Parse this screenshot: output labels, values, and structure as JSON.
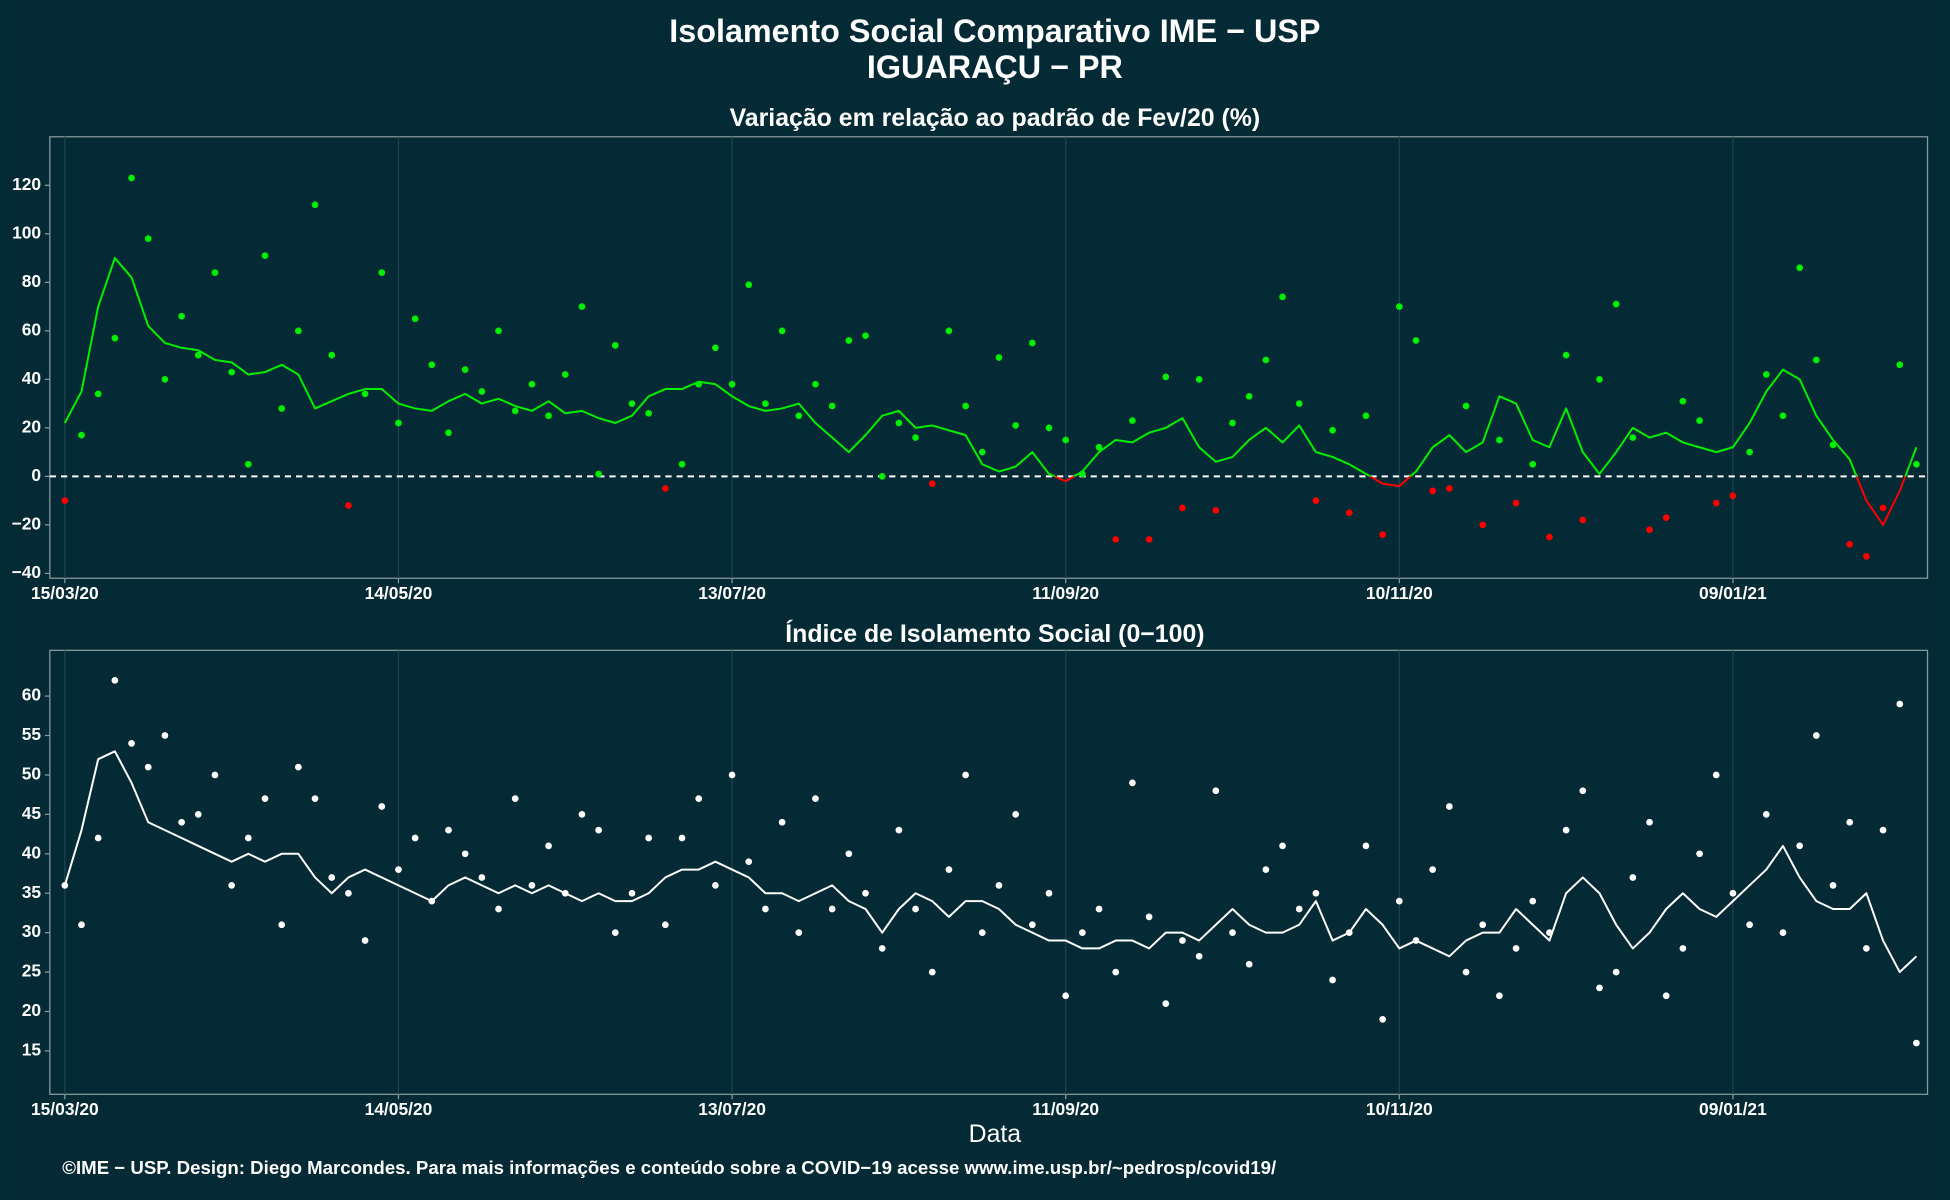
{
  "header": {
    "title": "Isolamento Social Comparativo IME − USP",
    "subtitle": "IGUARAÇU − PR"
  },
  "footer": "©IME − USP. Design: Diego Marcondes. Para mais informações e conteúdo sobre a COVID−19 acesse www.ime.usp.br/~pedrosp/covid19/",
  "chart_data": [
    {
      "type": "scatter",
      "title": "Variação em relação ao padrão de Fev/20 (%)",
      "x": [
        0,
        3,
        6,
        9,
        12,
        15,
        18,
        21,
        24,
        27,
        30,
        33,
        36,
        39,
        42,
        45,
        48,
        51,
        54,
        57,
        60,
        63,
        66,
        69,
        72,
        75,
        78,
        81,
        84,
        87,
        90,
        93,
        96,
        99,
        102,
        105,
        108,
        111,
        114,
        117,
        120,
        123,
        126,
        129,
        132,
        135,
        138,
        141,
        144,
        147,
        150,
        153,
        156,
        159,
        162,
        165,
        168,
        171,
        174,
        177,
        180,
        183,
        186,
        189,
        192,
        195,
        198,
        201,
        204,
        207,
        210,
        213,
        216,
        219,
        222,
        225,
        228,
        231,
        234,
        237,
        240,
        243,
        246,
        249,
        252,
        255,
        258,
        261,
        264,
        267,
        270,
        273,
        276,
        279,
        282,
        285,
        288,
        291,
        294,
        297,
        300,
        303,
        306,
        309,
        312,
        315,
        318,
        321,
        324,
        327,
        330,
        333
      ],
      "values": [
        -10,
        17,
        34,
        57,
        123,
        98,
        40,
        66,
        50,
        84,
        43,
        5,
        91,
        28,
        60,
        112,
        50,
        -12,
        34,
        84,
        22,
        65,
        46,
        18,
        44,
        35,
        60,
        27,
        38,
        25,
        42,
        70,
        1,
        54,
        30,
        26,
        -5,
        5,
        38,
        53,
        38,
        79,
        30,
        60,
        25,
        38,
        29,
        56,
        58,
        0,
        22,
        16,
        -3,
        60,
        29,
        10,
        49,
        21,
        55,
        20,
        15,
        1,
        12,
        -26,
        23,
        -26,
        41,
        -13,
        40,
        -14,
        22,
        33,
        48,
        74,
        30,
        -10,
        19,
        -15,
        25,
        -24,
        70,
        56,
        -6,
        -5,
        29,
        -20,
        15,
        -11,
        5,
        -25,
        50,
        -18,
        40,
        71,
        16,
        -22,
        -17,
        31,
        23,
        -11,
        -8,
        10,
        42,
        25,
        86,
        48,
        13,
        -28,
        -33,
        -13,
        46,
        5
      ],
      "moving_average": [
        22,
        35,
        70,
        90,
        82,
        62,
        55,
        53,
        52,
        48,
        47,
        42,
        43,
        46,
        42,
        28,
        31,
        34,
        36,
        36,
        30,
        28,
        27,
        31,
        34,
        30,
        32,
        29,
        27,
        31,
        26,
        27,
        24,
        22,
        25,
        33,
        36,
        36,
        39,
        38,
        33,
        29,
        27,
        28,
        30,
        22,
        16,
        10,
        17,
        25,
        27,
        20,
        21,
        19,
        17,
        5,
        2,
        4,
        10,
        1,
        -2,
        2,
        10,
        15,
        14,
        18,
        20,
        24,
        12,
        6,
        8,
        15,
        20,
        14,
        21,
        10,
        8,
        5,
        1,
        -3,
        -4,
        2,
        12,
        17,
        10,
        14,
        33,
        30,
        15,
        12,
        28,
        10,
        1,
        10,
        20,
        16,
        18,
        14,
        12,
        10,
        12,
        22,
        35,
        44,
        40,
        25,
        15,
        7,
        -10,
        -20,
        -6,
        12
      ],
      "positive_color": "#00ee00",
      "negative_color": "#ff0000",
      "xlim": [
        -2.7,
        335
      ],
      "ylim": [
        -42,
        140
      ],
      "xticks": [
        {
          "value": 0,
          "label": "15/03/20"
        },
        {
          "value": 60,
          "label": "14/05/20"
        },
        {
          "value": 120,
          "label": "13/07/20"
        },
        {
          "value": 180,
          "label": "11/09/20"
        },
        {
          "value": 240,
          "label": "10/11/20"
        },
        {
          "value": 300,
          "label": "09/01/21"
        }
      ],
      "yticks": [
        {
          "value": -40,
          "label": "−40"
        },
        {
          "value": -20,
          "label": "−20"
        },
        0,
        20,
        40,
        60,
        80,
        100,
        120
      ],
      "hline": 0,
      "grid": true
    },
    {
      "type": "scatter",
      "title": "Índice de Isolamento Social (0−100)",
      "xlabel": "Data",
      "x": [
        0,
        3,
        6,
        9,
        12,
        15,
        18,
        21,
        24,
        27,
        30,
        33,
        36,
        39,
        42,
        45,
        48,
        51,
        54,
        57,
        60,
        63,
        66,
        69,
        72,
        75,
        78,
        81,
        84,
        87,
        90,
        93,
        96,
        99,
        102,
        105,
        108,
        111,
        114,
        117,
        120,
        123,
        126,
        129,
        132,
        135,
        138,
        141,
        144,
        147,
        150,
        153,
        156,
        159,
        162,
        165,
        168,
        171,
        174,
        177,
        180,
        183,
        186,
        189,
        192,
        195,
        198,
        201,
        204,
        207,
        210,
        213,
        216,
        219,
        222,
        225,
        228,
        231,
        234,
        237,
        240,
        243,
        246,
        249,
        252,
        255,
        258,
        261,
        264,
        267,
        270,
        273,
        276,
        279,
        282,
        285,
        288,
        291,
        294,
        297,
        300,
        303,
        306,
        309,
        312,
        315,
        318,
        321,
        324,
        327,
        330,
        333
      ],
      "values": [
        36,
        31,
        42,
        62,
        54,
        51,
        55,
        44,
        45,
        50,
        36,
        42,
        47,
        31,
        51,
        47,
        37,
        35,
        29,
        46,
        38,
        42,
        34,
        43,
        40,
        37,
        33,
        47,
        36,
        41,
        35,
        45,
        43,
        30,
        35,
        42,
        31,
        42,
        47,
        36,
        50,
        39,
        33,
        44,
        30,
        47,
        33,
        40,
        35,
        28,
        43,
        33,
        25,
        38,
        50,
        30,
        36,
        45,
        31,
        35,
        22,
        30,
        33,
        25,
        49,
        32,
        21,
        29,
        27,
        48,
        30,
        26,
        38,
        41,
        33,
        35,
        24,
        30,
        41,
        19,
        34,
        29,
        38,
        46,
        25,
        31,
        22,
        28,
        34,
        30,
        43,
        48,
        23,
        25,
        37,
        44,
        22,
        28,
        40,
        50,
        35,
        31,
        45,
        30,
        41,
        55,
        36,
        44,
        28,
        43,
        59,
        16
      ],
      "moving_average": [
        36,
        43,
        52,
        53,
        49,
        44,
        43,
        42,
        41,
        40,
        39,
        40,
        39,
        40,
        40,
        37,
        35,
        37,
        38,
        37,
        36,
        35,
        34,
        36,
        37,
        36,
        35,
        36,
        35,
        36,
        35,
        34,
        35,
        34,
        34,
        35,
        37,
        38,
        38,
        39,
        38,
        37,
        35,
        35,
        34,
        35,
        36,
        34,
        33,
        30,
        33,
        35,
        34,
        32,
        34,
        34,
        33,
        31,
        30,
        29,
        29,
        28,
        28,
        29,
        29,
        28,
        30,
        30,
        29,
        31,
        33,
        31,
        30,
        30,
        31,
        34,
        29,
        30,
        33,
        31,
        28,
        29,
        28,
        27,
        29,
        30,
        30,
        33,
        31,
        29,
        35,
        37,
        35,
        31,
        28,
        30,
        33,
        35,
        33,
        32,
        34,
        36,
        38,
        41,
        37,
        34,
        33,
        33,
        35,
        29,
        25,
        27
      ],
      "color": "#ffffff",
      "xlim": [
        -2.7,
        335
      ],
      "ylim": [
        9.5,
        65.8
      ],
      "xticks": [
        {
          "value": 0,
          "label": "15/03/20"
        },
        {
          "value": 60,
          "label": "14/05/20"
        },
        {
          "value": 120,
          "label": "13/07/20"
        },
        {
          "value": 180,
          "label": "11/09/20"
        },
        {
          "value": 240,
          "label": "10/11/20"
        },
        {
          "value": 300,
          "label": "09/01/21"
        }
      ],
      "yticks": [
        15,
        20,
        25,
        30,
        35,
        40,
        45,
        50,
        55,
        60
      ],
      "grid": true
    }
  ]
}
